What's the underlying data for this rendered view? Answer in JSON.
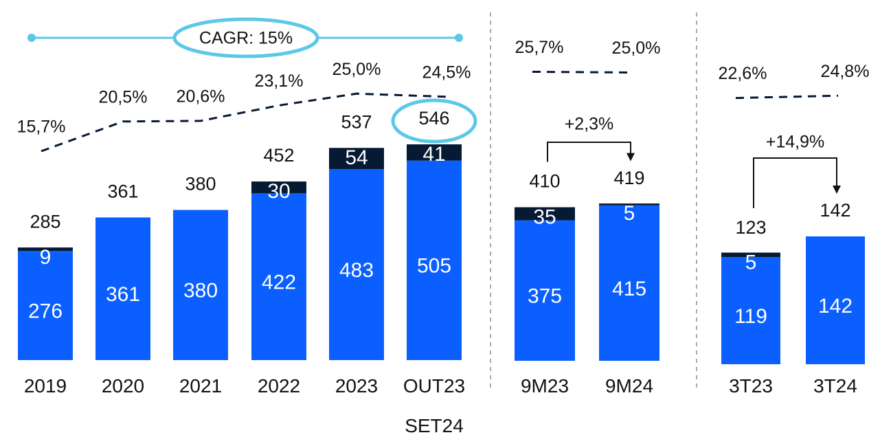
{
  "chart_data": [
    {
      "type": "bar",
      "categories": [
        "2019",
        "2020",
        "2021",
        "2022",
        "2023",
        "OUT23 SET24"
      ],
      "series": [
        {
          "color": "#0b5fff",
          "values": [
            276,
            361,
            380,
            422,
            483,
            505
          ]
        },
        {
          "color": "#061a33",
          "values": [
            9,
            null,
            null,
            30,
            54,
            41
          ]
        }
      ],
      "totals": [
        285,
        361,
        380,
        452,
        537,
        546
      ],
      "margin": {
        "values": [
          15.7,
          20.5,
          20.6,
          23.1,
          25.0,
          24.5
        ],
        "value_labels": [
          "15,7%",
          "20,5%",
          "20,6%",
          "23,1%",
          "25,0%",
          "24,5%"
        ]
      },
      "annotation": "CAGR: 15%"
    },
    {
      "type": "bar",
      "categories": [
        "9M23",
        "9M24"
      ],
      "series": [
        {
          "color": "#0b5fff",
          "values": [
            375,
            415
          ]
        },
        {
          "color": "#061a33",
          "values": [
            35,
            5
          ]
        }
      ],
      "totals": [
        410,
        419
      ],
      "margin": {
        "values": [
          25.7,
          25.0
        ],
        "value_labels": [
          "25,7%",
          "25,0%"
        ]
      },
      "annotation": "+2,3%"
    },
    {
      "type": "bar",
      "categories": [
        "3T23",
        "3T24"
      ],
      "series": [
        {
          "color": "#0b5fff",
          "values": [
            119,
            142
          ]
        },
        {
          "color": "#061a33",
          "values": [
            5,
            null
          ]
        }
      ],
      "totals": [
        123,
        142
      ],
      "margin": {
        "values": [
          22.6,
          24.8
        ],
        "value_labels": [
          "22,6%",
          "24,8%"
        ]
      },
      "annotation": "+14,9%"
    }
  ]
}
